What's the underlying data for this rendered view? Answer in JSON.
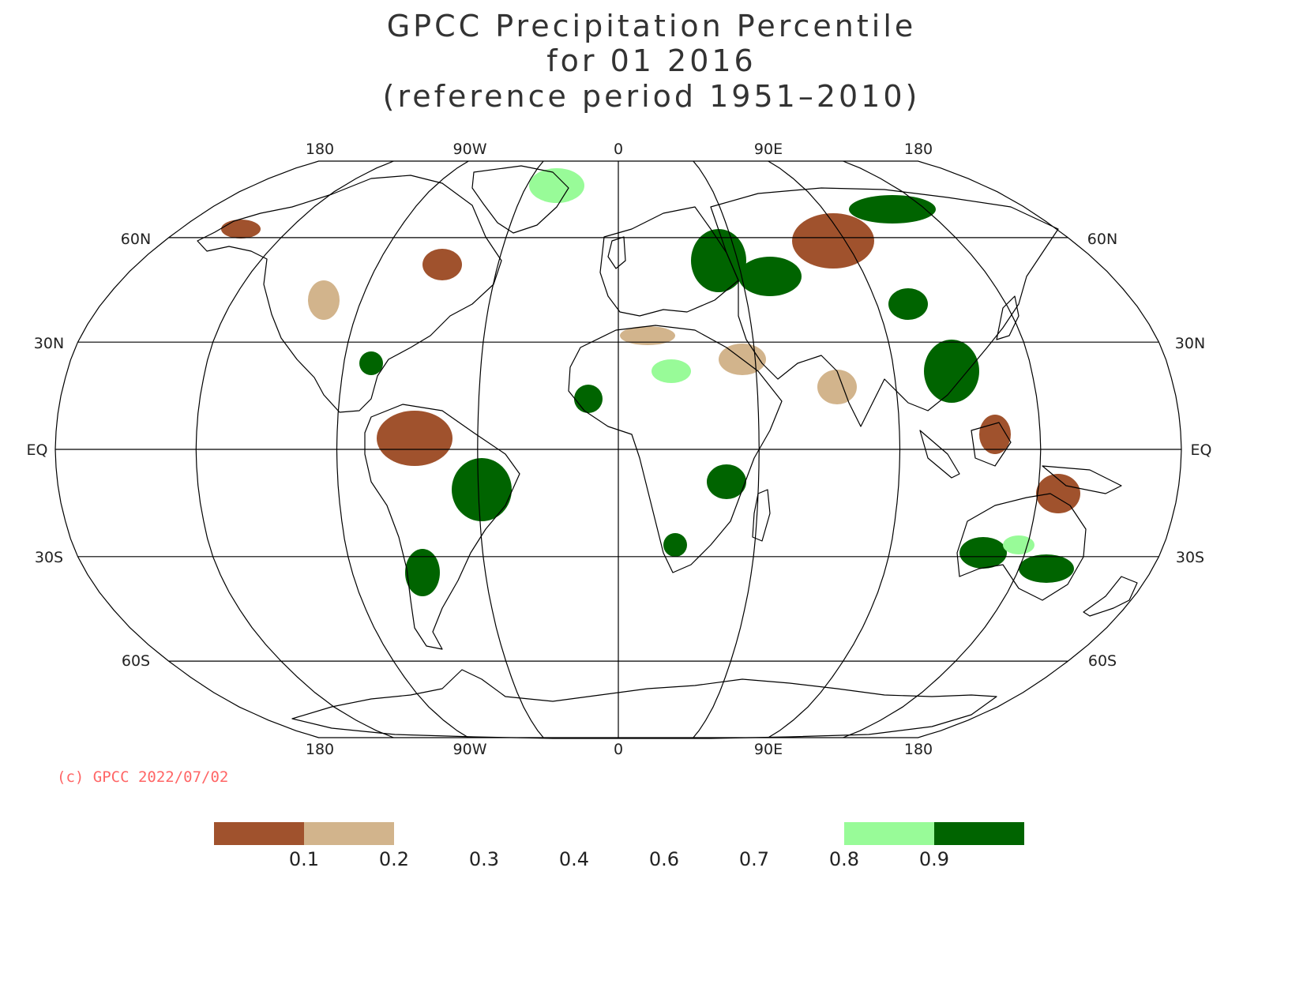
{
  "title": {
    "line1": "GPCC Precipitation Percentile",
    "line2": "for 01 2016",
    "line3": "(reference period 1951–2010)"
  },
  "map": {
    "projection": "Robinson",
    "center_longitude": 0,
    "longitude_labels_top": [
      "180",
      "90W",
      "0",
      "90E",
      "180"
    ],
    "longitude_labels_bottom": [
      "180",
      "90W",
      "0",
      "90E",
      "180"
    ],
    "latitude_labels_left": [
      "60N",
      "30N",
      "EQ",
      "30S",
      "60S"
    ],
    "latitude_labels_right": [
      "60N",
      "30N",
      "EQ",
      "30S",
      "60S"
    ],
    "colors": {
      "coastline": "#000000",
      "gridline": "#000000",
      "dry_strong": "#a0522d",
      "dry": "#d2b48c",
      "wet": "#98fb98",
      "wet_strong": "#006400"
    }
  },
  "copyright": "(c) GPCC 2022/07/02",
  "legend": {
    "classes": [
      {
        "range": "< 0.1",
        "color": "#a0522d"
      },
      {
        "range": "0.1 - 0.2",
        "color": "#d2b48c"
      },
      {
        "range": "0.2 - 0.8",
        "color": "#ffffff"
      },
      {
        "range": "0.8 - 0.9",
        "color": "#98fb98"
      },
      {
        "range": "> 0.9",
        "color": "#006400"
      }
    ],
    "tick_labels": [
      "0.1",
      "0.2",
      "0.3",
      "0.4",
      "0.6",
      "0.7",
      "0.8",
      "0.9"
    ]
  }
}
